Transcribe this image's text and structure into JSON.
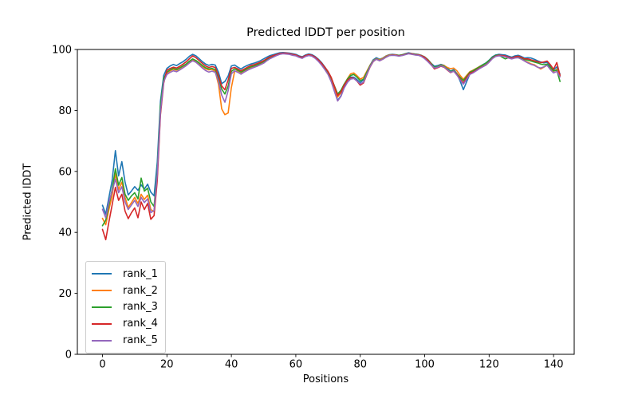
{
  "figure": {
    "title": "Predicted lDDT per position",
    "xlabel": "Positions",
    "ylabel": "Predicted lDDT"
  },
  "chart_data": {
    "type": "line",
    "title": "Predicted lDDT per position",
    "xlabel": "Positions",
    "ylabel": "Predicted lDDT",
    "xlim": [
      -7.8,
      146.4
    ],
    "ylim": [
      0,
      100
    ],
    "xticks": [
      0,
      20,
      40,
      60,
      80,
      100,
      120,
      140
    ],
    "yticks": [
      0,
      20,
      40,
      60,
      80,
      100
    ],
    "grid": false,
    "legend_position": "lower left",
    "x": [
      0,
      1,
      2,
      3,
      4,
      5,
      6,
      7,
      8,
      9,
      10,
      11,
      12,
      13,
      14,
      15,
      16,
      17,
      18,
      19,
      20,
      21,
      22,
      23,
      24,
      25,
      26,
      27,
      28,
      29,
      30,
      31,
      32,
      33,
      34,
      35,
      36,
      37,
      38,
      39,
      40,
      41,
      42,
      43,
      44,
      45,
      46,
      47,
      48,
      49,
      50,
      51,
      52,
      53,
      54,
      55,
      56,
      57,
      58,
      59,
      60,
      61,
      62,
      63,
      64,
      65,
      66,
      67,
      68,
      69,
      70,
      71,
      72,
      73,
      74,
      75,
      76,
      77,
      78,
      79,
      80,
      81,
      82,
      83,
      84,
      85,
      86,
      87,
      88,
      89,
      90,
      91,
      92,
      93,
      94,
      95,
      96,
      97,
      98,
      99,
      100,
      101,
      102,
      103,
      104,
      105,
      106,
      107,
      108,
      109,
      110,
      111,
      112,
      113,
      114,
      115,
      116,
      117,
      118,
      119,
      120,
      121,
      122,
      123,
      124,
      125,
      126,
      127,
      128,
      129,
      130,
      131,
      132,
      133,
      134,
      135,
      136,
      137,
      138,
      139,
      140,
      141,
      142
    ],
    "series": [
      {
        "name": "rank_1",
        "color": "#1f77b4",
        "values": [
          48.9,
          46.0,
          51.5,
          57.0,
          66.8,
          58.5,
          63.2,
          56.5,
          52.3,
          53.6,
          55.0,
          53.8,
          55.6,
          54.2,
          55.8,
          53.2,
          52.0,
          63.0,
          83.0,
          91.5,
          93.8,
          94.6,
          95.1,
          94.7,
          95.4,
          96.0,
          96.8,
          97.8,
          98.4,
          97.9,
          97.0,
          96.0,
          95.2,
          94.8,
          95.1,
          94.9,
          92.5,
          88.8,
          89.5,
          91.3,
          94.6,
          94.9,
          94.2,
          93.6,
          94.3,
          94.8,
          95.2,
          95.5,
          95.9,
          96.3,
          96.9,
          97.5,
          98.0,
          98.3,
          98.6,
          98.9,
          99.0,
          98.9,
          98.8,
          98.6,
          98.4,
          97.9,
          97.6,
          98.2,
          98.5,
          98.3,
          97.7,
          96.8,
          95.7,
          94.3,
          92.7,
          90.4,
          86.9,
          83.3,
          84.8,
          87.8,
          89.9,
          91.0,
          90.9,
          90.1,
          89.2,
          90.0,
          92.3,
          94.8,
          96.6,
          97.3,
          96.8,
          97.2,
          97.9,
          98.3,
          98.4,
          98.3,
          98.1,
          98.3,
          98.6,
          98.9,
          98.7,
          98.5,
          98.4,
          98.1,
          97.6,
          96.7,
          95.5,
          94.5,
          94.7,
          95.1,
          94.8,
          93.9,
          92.9,
          93.4,
          92.1,
          89.6,
          86.8,
          89.4,
          91.9,
          92.8,
          93.6,
          94.4,
          95.0,
          95.6,
          96.5,
          97.6,
          98.2,
          98.4,
          98.3,
          98.2,
          97.8,
          97.5,
          97.9,
          98.1,
          97.7,
          97.2,
          97.3,
          97.2,
          96.8,
          96.3,
          95.9,
          95.6,
          95.8,
          94.6,
          93.3,
          94.3,
          91.9
        ]
      },
      {
        "name": "rank_2",
        "color": "#ff7f0e",
        "values": [
          44.6,
          42.5,
          47.5,
          52.0,
          59.3,
          54.0,
          56.5,
          51.5,
          48.2,
          49.8,
          51.5,
          49.5,
          52.5,
          50.8,
          52.2,
          47.5,
          46.8,
          58.5,
          80.0,
          90.0,
          92.3,
          93.0,
          93.5,
          93.2,
          93.8,
          94.4,
          95.0,
          95.9,
          96.6,
          96.1,
          95.3,
          94.4,
          93.7,
          93.3,
          93.5,
          92.8,
          88.5,
          80.5,
          78.6,
          79.2,
          87.5,
          92.8,
          93.0,
          92.4,
          93.0,
          93.6,
          94.1,
          94.4,
          94.9,
          95.3,
          95.8,
          96.5,
          97.2,
          97.7,
          98.1,
          98.5,
          98.7,
          98.6,
          98.5,
          98.2,
          98.0,
          97.5,
          97.2,
          97.8,
          98.1,
          97.9,
          97.3,
          96.3,
          95.1,
          93.7,
          92.1,
          89.8,
          86.7,
          84.4,
          85.8,
          88.3,
          90.4,
          92.0,
          92.3,
          91.4,
          90.3,
          90.8,
          92.8,
          94.8,
          96.3,
          97.0,
          96.6,
          97.1,
          97.8,
          98.2,
          98.3,
          98.2,
          98.0,
          98.2,
          98.5,
          98.7,
          98.6,
          98.4,
          98.3,
          98.0,
          97.5,
          96.6,
          95.4,
          94.0,
          94.4,
          94.9,
          94.7,
          94.1,
          93.7,
          93.9,
          93.0,
          91.5,
          90.2,
          91.5,
          92.7,
          93.2,
          93.8,
          94.4,
          94.9,
          95.4,
          96.2,
          97.2,
          97.8,
          98.0,
          97.9,
          97.8,
          97.4,
          97.1,
          97.4,
          97.3,
          96.9,
          96.3,
          95.8,
          95.3,
          95.0,
          94.3,
          93.6,
          94.2,
          95.0,
          93.8,
          92.8,
          93.5,
          91.2
        ]
      },
      {
        "name": "rank_3",
        "color": "#2ca02c",
        "values": [
          42.2,
          44.0,
          49.0,
          54.0,
          60.9,
          55.5,
          58.0,
          52.5,
          50.5,
          52.0,
          53.0,
          51.0,
          57.8,
          53.5,
          54.5,
          50.0,
          48.5,
          60.0,
          81.5,
          90.5,
          92.6,
          93.3,
          93.8,
          93.4,
          94.0,
          94.6,
          95.3,
          96.2,
          96.9,
          96.4,
          95.6,
          94.7,
          94.0,
          93.6,
          93.8,
          93.4,
          90.5,
          87.0,
          85.4,
          88.0,
          92.8,
          93.6,
          93.2,
          92.6,
          93.2,
          93.8,
          94.3,
          94.6,
          95.0,
          95.5,
          96.0,
          96.7,
          97.3,
          97.8,
          98.2,
          98.6,
          98.7,
          98.7,
          98.5,
          98.3,
          98.1,
          97.6,
          97.3,
          97.9,
          98.2,
          98.0,
          97.4,
          96.5,
          95.4,
          94.0,
          92.6,
          90.6,
          88.0,
          85.4,
          86.6,
          88.6,
          90.3,
          91.5,
          91.8,
          90.9,
          89.8,
          90.2,
          92.4,
          94.6,
          96.2,
          96.9,
          96.4,
          96.9,
          97.6,
          98.1,
          98.2,
          98.1,
          98.0,
          98.2,
          98.5,
          98.7,
          98.5,
          98.4,
          98.2,
          97.9,
          97.4,
          96.5,
          95.3,
          94.2,
          94.4,
          94.8,
          94.5,
          93.6,
          92.7,
          93.1,
          92.0,
          90.8,
          89.8,
          91.1,
          92.5,
          93.0,
          93.7,
          94.3,
          94.9,
          95.5,
          96.4,
          97.4,
          98.0,
          98.2,
          97.5,
          96.9,
          97.3,
          97.1,
          97.5,
          97.6,
          97.2,
          96.7,
          96.5,
          96.2,
          95.9,
          95.6,
          95.2,
          95.0,
          95.2,
          94.2,
          93.0,
          93.2,
          89.5
        ]
      },
      {
        "name": "rank_4",
        "color": "#d62728",
        "values": [
          41.0,
          37.6,
          43.5,
          49.0,
          54.8,
          50.5,
          52.5,
          47.0,
          44.5,
          46.5,
          48.0,
          44.8,
          50.0,
          47.5,
          49.5,
          44.3,
          45.5,
          57.0,
          78.5,
          89.0,
          93.2,
          93.8,
          94.2,
          93.9,
          94.5,
          95.2,
          96.0,
          97.0,
          97.9,
          97.3,
          96.4,
          95.4,
          94.6,
          94.1,
          94.4,
          94.1,
          91.3,
          88.0,
          86.8,
          90.0,
          93.8,
          94.1,
          93.6,
          93.0,
          93.6,
          94.2,
          94.7,
          95.0,
          95.4,
          95.8,
          96.3,
          97.0,
          97.6,
          98.0,
          98.3,
          98.7,
          98.8,
          98.8,
          98.6,
          98.4,
          98.2,
          97.7,
          97.4,
          98.0,
          98.3,
          98.1,
          97.5,
          96.6,
          95.5,
          94.2,
          92.8,
          90.8,
          87.8,
          84.9,
          86.0,
          88.3,
          89.9,
          90.7,
          90.6,
          89.6,
          88.3,
          89.0,
          91.6,
          94.2,
          96.0,
          96.8,
          96.3,
          96.8,
          97.5,
          98.0,
          98.2,
          98.1,
          97.9,
          98.1,
          98.4,
          98.7,
          98.5,
          98.3,
          98.2,
          97.9,
          97.4,
          96.4,
          95.1,
          93.6,
          94.0,
          94.5,
          94.2,
          93.3,
          92.4,
          92.9,
          91.8,
          90.3,
          89.0,
          90.7,
          92.2,
          92.6,
          93.2,
          93.9,
          94.4,
          94.9,
          95.9,
          97.1,
          97.8,
          98.1,
          98.0,
          97.9,
          97.5,
          97.2,
          97.6,
          97.8,
          97.4,
          96.9,
          96.9,
          96.6,
          96.3,
          96.0,
          95.7,
          95.9,
          96.2,
          95.0,
          93.5,
          95.7,
          91.5
        ]
      },
      {
        "name": "rank_5",
        "color": "#9467bd",
        "values": [
          47.6,
          44.8,
          50.0,
          53.5,
          57.5,
          53.0,
          55.0,
          50.0,
          47.5,
          49.0,
          50.5,
          48.5,
          51.5,
          49.8,
          51.0,
          46.5,
          47.2,
          59.0,
          79.5,
          89.5,
          91.8,
          92.5,
          93.0,
          92.7,
          93.3,
          94.0,
          94.7,
          95.6,
          96.3,
          95.8,
          94.9,
          93.9,
          93.1,
          92.6,
          92.9,
          92.5,
          89.5,
          85.0,
          82.7,
          86.5,
          92.0,
          93.0,
          92.5,
          91.9,
          92.6,
          93.2,
          93.7,
          94.1,
          94.5,
          95.0,
          95.5,
          96.3,
          97.0,
          97.5,
          98.0,
          98.4,
          98.6,
          98.5,
          98.4,
          98.1,
          97.9,
          97.4,
          97.1,
          97.7,
          98.0,
          97.8,
          97.1,
          96.1,
          94.9,
          93.4,
          91.8,
          89.4,
          86.2,
          83.1,
          84.6,
          87.3,
          89.2,
          90.3,
          90.5,
          89.6,
          88.7,
          89.3,
          91.8,
          94.3,
          96.1,
          96.8,
          96.3,
          96.8,
          97.5,
          98.0,
          98.1,
          98.0,
          97.8,
          98.0,
          98.3,
          98.6,
          98.4,
          98.2,
          98.1,
          97.7,
          97.0,
          96.0,
          94.9,
          93.9,
          94.2,
          94.6,
          94.3,
          93.4,
          92.5,
          92.9,
          91.6,
          90.0,
          88.6,
          90.2,
          91.8,
          92.3,
          93.0,
          93.7,
          94.3,
          94.9,
          95.8,
          97.0,
          97.7,
          97.9,
          97.8,
          97.6,
          97.2,
          96.9,
          97.2,
          97.3,
          96.8,
          96.2,
          95.6,
          95.1,
          94.8,
          94.2,
          93.9,
          94.3,
          94.8,
          93.4,
          92.3,
          92.8,
          91.0
        ]
      }
    ]
  }
}
